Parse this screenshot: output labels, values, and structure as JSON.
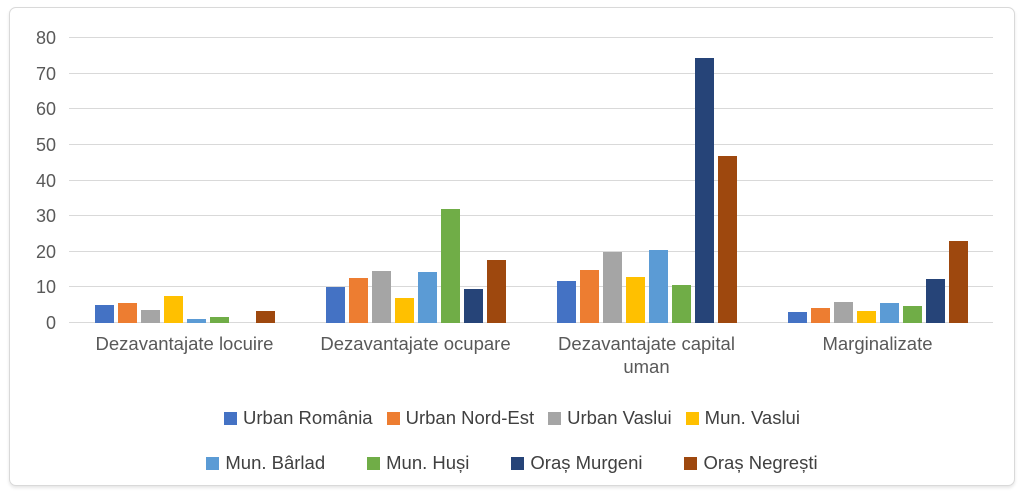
{
  "chart_data": {
    "type": "bar",
    "title": "",
    "xlabel": "",
    "ylabel": "",
    "ylim": [
      0,
      80
    ],
    "yticks": [
      0,
      10,
      20,
      30,
      40,
      50,
      60,
      70,
      80
    ],
    "grid": true,
    "legend_position": "bottom",
    "categories": [
      "Dezavantajate locuire",
      "Dezavantajate ocupare",
      "Dezavantajate capital uman",
      "Marginalizate"
    ],
    "series": [
      {
        "name": "Urban România",
        "color": "#4472c4",
        "values": [
          5.1,
          10.0,
          11.8,
          3.2
        ]
      },
      {
        "name": "Urban Nord-Est",
        "color": "#ed7d31",
        "values": [
          5.6,
          12.5,
          15.0,
          4.3
        ]
      },
      {
        "name": "Urban Vaslui",
        "color": "#a5a5a5",
        "values": [
          3.7,
          14.6,
          19.8,
          6.0
        ]
      },
      {
        "name": "Mun. Vaslui",
        "color": "#ffc000",
        "values": [
          7.5,
          6.9,
          12.9,
          3.5
        ]
      },
      {
        "name": "Mun. Bârlad",
        "color": "#5b9bd5",
        "values": [
          1.2,
          14.2,
          20.5,
          5.6
        ]
      },
      {
        "name": "Mun. Huși",
        "color": "#70ad47",
        "values": [
          1.6,
          32.0,
          10.8,
          4.7
        ]
      },
      {
        "name": "Oraș Murgeni",
        "color": "#264478",
        "values": [
          0.0,
          9.5,
          74.5,
          12.3
        ]
      },
      {
        "name": "Oraș Negrești",
        "color": "#9e480e",
        "values": [
          3.5,
          17.8,
          46.8,
          23.0
        ]
      }
    ],
    "legend_rows": [
      [
        "Urban România",
        "Urban Nord-Est",
        "Urban Vaslui",
        "Mun. Vaslui"
      ],
      [
        "Mun. Bârlad",
        "Mun. Huși",
        "Oraș Murgeni",
        "Oraș Negrești"
      ]
    ],
    "colors": {
      "gridline": "#d9d9d9",
      "frame_border": "#d9d9d9",
      "axis_text": "#595959",
      "legend_text": "#404040",
      "background": "#ffffff"
    }
  }
}
